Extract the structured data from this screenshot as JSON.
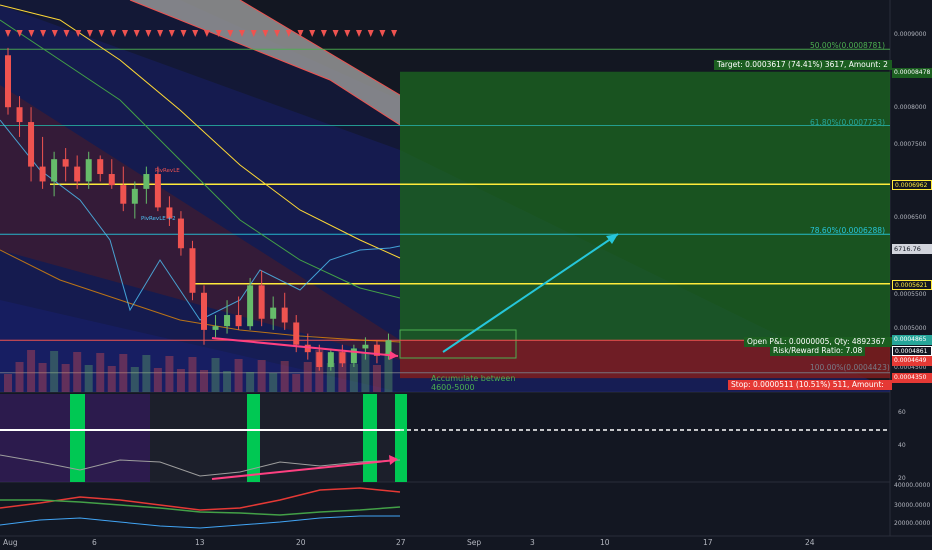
{
  "price_axis": {
    "labels": [
      "0.0009000",
      "0.0008000",
      "0.0007500",
      "0.0006500",
      "0.0005500",
      "0.0005000",
      "0.0004500"
    ],
    "ticks": [
      {
        "text": "0.0009000",
        "price": 0.0009
      },
      {
        "text": "0.0008000",
        "price": 0.0008
      },
      {
        "text": "0.0007500",
        "price": 0.00075
      },
      {
        "text": "0.0006500",
        "price": 0.00065
      },
      {
        "text": "0.0005500",
        "price": 0.00055
      },
      {
        "text": "0.0005000",
        "price": 0.0005
      },
      {
        "text": "0.0004500",
        "price": 0.00045
      }
    ]
  },
  "price_tags": [
    {
      "text": "0.00008478",
      "price": 8.478e-05,
      "bg": "#1b5e20",
      "color": "#ffffff"
    },
    {
      "text": "0.0006962",
      "price": 0.0006962,
      "bg": "#131722",
      "color": "#ffeb3b",
      "border": "#ffeb3b"
    },
    {
      "text": "6716.76",
      "price": 0.0006717,
      "bg": "#d1d4dc",
      "color": "#131722"
    },
    {
      "text": "0.0005621",
      "price": 0.0005621,
      "bg": "#131722",
      "color": "#ffeb3b",
      "border": "#ffeb3b"
    },
    {
      "text": "0.0004865",
      "price": 0.0004865,
      "bg": "#26a69a",
      "color": "#ffffff"
    },
    {
      "text": "0.0004861",
      "price": 0.0004861,
      "bg": "#131722",
      "color": "#ffffff",
      "border": "#ffffff"
    },
    {
      "text": "0.0004649",
      "price": 0.0004649,
      "bg": "#e53935",
      "color": "#ffffff"
    },
    {
      "text": "0.0004350",
      "price": 0.000435,
      "bg": "#e53935",
      "color": "#ffffff"
    }
  ],
  "fib_levels": [
    {
      "label": "50.00%(0.0008781)",
      "price": 0.0008781
    },
    {
      "label": "61.80%(0.0007753)",
      "price": 0.0007753
    },
    {
      "label": "78.60%(0.0006288)",
      "price": 0.0006288
    },
    {
      "label": "100.00%(0.0004423)",
      "price": 0.0004423
    }
  ],
  "yellow_lines": [
    0.0006962,
    0.0005621
  ],
  "position": {
    "target_label": "Target: 0.0003617 (74.41%) 3617, Amount: 2",
    "open_pnl_label": "Open P&L: 0.0000005, Qty: 4892367",
    "risk_reward_label": "Risk/Reward Ratio: 7.08",
    "stop_label": "Stop: 0.0000511 (10.51%) 511, Amount:",
    "entry": 0.0004861,
    "target": 0.0008478,
    "stop": 0.000435
  },
  "annotations": {
    "accumulate_line1": "Accumulate between",
    "accumulate_line2": "4600-5000",
    "pivot_label_1": "PivRevLE",
    "pivot_label_2": "PivRevLE\n+2"
  },
  "oscillator_axis": [
    "60",
    "40",
    "20"
  ],
  "volume_axis": [
    "40000.0000",
    "30000.0000",
    "20000.0000"
  ],
  "x_axis": [
    "Aug",
    "6",
    "13",
    "20",
    "27",
    "Sep",
    "3",
    "10",
    "17",
    "24"
  ],
  "colors": {
    "up": "#66bb6a",
    "down": "#ef5350",
    "target_zone": "#1b5e20",
    "stop_zone": "#7f1d1d",
    "yellow": "#ffeb3b",
    "channel_blue": "#1a237e",
    "cloud_gray": "#9e9e9e"
  },
  "candles": [
    {
      "o": 0.00087,
      "h": 0.00088,
      "l": 0.00079,
      "c": 0.0008
    },
    {
      "o": 0.0008,
      "h": 0.000815,
      "l": 0.00076,
      "c": 0.00078
    },
    {
      "o": 0.00078,
      "h": 0.0008,
      "l": 0.0007,
      "c": 0.00072
    },
    {
      "o": 0.00072,
      "h": 0.00076,
      "l": 0.00069,
      "c": 0.0007
    },
    {
      "o": 0.0007,
      "h": 0.00074,
      "l": 0.00068,
      "c": 0.00073
    },
    {
      "o": 0.00073,
      "h": 0.000745,
      "l": 0.0007,
      "c": 0.00072
    },
    {
      "o": 0.00072,
      "h": 0.000735,
      "l": 0.00069,
      "c": 0.0007
    },
    {
      "o": 0.0007,
      "h": 0.00074,
      "l": 0.00069,
      "c": 0.00073
    },
    {
      "o": 0.00073,
      "h": 0.000735,
      "l": 0.0007,
      "c": 0.00071
    },
    {
      "o": 0.00071,
      "h": 0.00073,
      "l": 0.00069,
      "c": 0.000695
    },
    {
      "o": 0.000695,
      "h": 0.00072,
      "l": 0.00066,
      "c": 0.00067
    },
    {
      "o": 0.00067,
      "h": 0.0007,
      "l": 0.00065,
      "c": 0.00069
    },
    {
      "o": 0.00069,
      "h": 0.00072,
      "l": 0.00067,
      "c": 0.00071
    },
    {
      "o": 0.00071,
      "h": 0.00072,
      "l": 0.00066,
      "c": 0.000665
    },
    {
      "o": 0.000665,
      "h": 0.00068,
      "l": 0.00064,
      "c": 0.00065
    },
    {
      "o": 0.00065,
      "h": 0.00066,
      "l": 0.0006,
      "c": 0.00061
    },
    {
      "o": 0.00061,
      "h": 0.00062,
      "l": 0.00054,
      "c": 0.00055
    },
    {
      "o": 0.00055,
      "h": 0.00056,
      "l": 0.00048,
      "c": 0.0005
    },
    {
      "o": 0.0005,
      "h": 0.00052,
      "l": 0.00049,
      "c": 0.000505
    },
    {
      "o": 0.000505,
      "h": 0.00054,
      "l": 0.000495,
      "c": 0.00052
    },
    {
      "o": 0.00052,
      "h": 0.000545,
      "l": 0.0005,
      "c": 0.000505
    },
    {
      "o": 0.000505,
      "h": 0.00057,
      "l": 0.0005,
      "c": 0.00056
    },
    {
      "o": 0.00056,
      "h": 0.00058,
      "l": 0.000505,
      "c": 0.000515
    },
    {
      "o": 0.000515,
      "h": 0.000545,
      "l": 0.0005,
      "c": 0.00053
    },
    {
      "o": 0.00053,
      "h": 0.00055,
      "l": 0.0005,
      "c": 0.00051
    },
    {
      "o": 0.00051,
      "h": 0.00052,
      "l": 0.00047,
      "c": 0.00048
    },
    {
      "o": 0.00048,
      "h": 0.000495,
      "l": 0.00046,
      "c": 0.00047
    },
    {
      "o": 0.00047,
      "h": 0.00048,
      "l": 0.000445,
      "c": 0.00045
    },
    {
      "o": 0.00045,
      "h": 0.000475,
      "l": 0.000445,
      "c": 0.00047
    },
    {
      "o": 0.00047,
      "h": 0.00048,
      "l": 0.00045,
      "c": 0.000455
    },
    {
      "o": 0.000455,
      "h": 0.00048,
      "l": 0.00045,
      "c": 0.000475
    },
    {
      "o": 0.000475,
      "h": 0.00049,
      "l": 0.00046,
      "c": 0.00048
    },
    {
      "o": 0.00048,
      "h": 0.000485,
      "l": 0.000455,
      "c": 0.000465
    },
    {
      "o": 0.000465,
      "h": 0.000495,
      "l": 0.00046,
      "c": 0.000486
    }
  ]
}
